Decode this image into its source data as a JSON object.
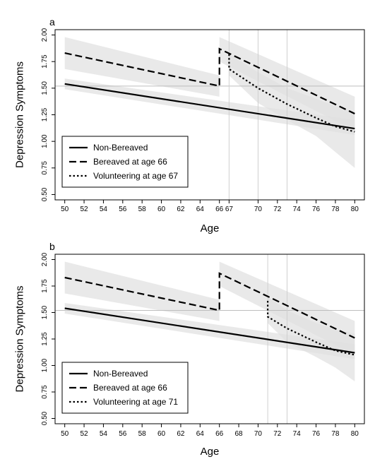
{
  "chart_data": [
    {
      "panel": "a",
      "type": "line",
      "xlabel": "Age",
      "ylabel": "Depression Symptoms",
      "xlim": [
        49,
        81
      ],
      "ylim": [
        0.45,
        2.05
      ],
      "xticks": [
        50,
        52,
        54,
        56,
        58,
        60,
        62,
        64,
        66,
        67,
        70,
        72,
        74,
        76,
        78,
        80
      ],
      "yticks": [
        "0.50",
        "0.75",
        "1.00",
        "1.25",
        "1.50",
        "1.75",
        "2.00"
      ],
      "reference_hline": 1.52,
      "reference_vlines": [
        67,
        70,
        73
      ],
      "grid": false,
      "legend_position": "bottom-left",
      "series": [
        {
          "name": "Non-Bereaved",
          "dash": "solid",
          "x": [
            50,
            80
          ],
          "y": [
            1.54,
            1.12
          ],
          "band_upper": [
            1.59,
            1.2
          ],
          "band_lower": [
            1.49,
            1.06
          ]
        },
        {
          "name": "Bereaved at age 66",
          "dash": "dashed",
          "x": [
            50,
            66,
            66,
            80
          ],
          "y": [
            1.83,
            1.52,
            1.87,
            1.26
          ],
          "band_upper": [
            1.98,
            1.62,
            1.98,
            1.42
          ],
          "band_lower": [
            1.68,
            1.42,
            1.75,
            1.1
          ]
        },
        {
          "name": "Volunteering at age 67",
          "dash": "dotted",
          "x": [
            67,
            67,
            70,
            73,
            76,
            78,
            80
          ],
          "y": [
            1.82,
            1.68,
            1.5,
            1.35,
            1.22,
            1.14,
            1.09
          ],
          "band_upper": [
            1.82,
            1.82,
            1.65,
            1.5,
            1.4,
            1.33,
            1.28
          ],
          "band_lower": [
            1.62,
            1.62,
            1.36,
            1.2,
            1.05,
            0.9,
            0.75
          ]
        }
      ]
    },
    {
      "panel": "b",
      "type": "line",
      "xlabel": "Age",
      "ylabel": "Depression Symptoms",
      "xlim": [
        49,
        81
      ],
      "ylim": [
        0.45,
        2.05
      ],
      "xticks": [
        50,
        52,
        54,
        56,
        58,
        60,
        62,
        64,
        66,
        68,
        70,
        72,
        74,
        76,
        78,
        80
      ],
      "yticks": [
        "0.50",
        "0.75",
        "1.00",
        "1.25",
        "1.50",
        "1.75",
        "2.00"
      ],
      "reference_hline": 1.52,
      "reference_vlines": [
        71,
        73
      ],
      "grid": false,
      "legend_position": "bottom-left",
      "series": [
        {
          "name": "Non-Bereaved",
          "dash": "solid",
          "x": [
            50,
            80
          ],
          "y": [
            1.54,
            1.12
          ],
          "band_upper": [
            1.59,
            1.2
          ],
          "band_lower": [
            1.49,
            1.06
          ]
        },
        {
          "name": "Bereaved at age 66",
          "dash": "dashed",
          "x": [
            50,
            66,
            66,
            80
          ],
          "y": [
            1.83,
            1.52,
            1.87,
            1.26
          ],
          "band_upper": [
            1.98,
            1.62,
            1.98,
            1.42
          ],
          "band_lower": [
            1.68,
            1.42,
            1.75,
            1.1
          ]
        },
        {
          "name": "Volunteering at age 71",
          "dash": "dotted",
          "x": [
            71,
            71,
            73,
            76,
            78,
            80
          ],
          "y": [
            1.61,
            1.46,
            1.35,
            1.22,
            1.14,
            1.1
          ],
          "band_upper": [
            1.65,
            1.65,
            1.52,
            1.4,
            1.34,
            1.3
          ],
          "band_lower": [
            1.4,
            1.4,
            1.22,
            1.08,
            0.98,
            0.85
          ]
        }
      ]
    }
  ]
}
